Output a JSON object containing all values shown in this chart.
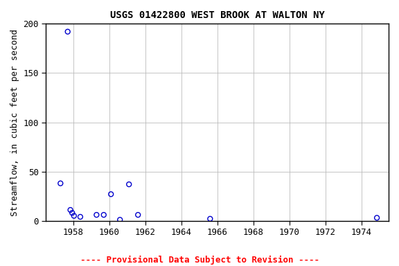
{
  "title": "USGS 01422800 WEST BROOK AT WALTON NY",
  "ylabel": "Streamflow, in cubic feet per second",
  "footnote": "---- Provisional Data Subject to Revision ----",
  "x_data": [
    1957.3,
    1957.7,
    1957.85,
    1957.95,
    1958.05,
    1958.4,
    1959.3,
    1959.7,
    1960.1,
    1960.6,
    1961.1,
    1961.6,
    1965.6,
    1974.85
  ],
  "y_data": [
    38,
    192,
    11,
    8,
    5,
    4,
    6,
    6,
    27,
    1,
    37,
    6,
    2,
    3
  ],
  "xlim": [
    1956.5,
    1975.5
  ],
  "ylim": [
    0,
    200
  ],
  "xticks": [
    1958,
    1960,
    1962,
    1964,
    1966,
    1968,
    1970,
    1972,
    1974
  ],
  "yticks": [
    0,
    50,
    100,
    150,
    200
  ],
  "marker_color": "#0000cc",
  "marker_facecolor": "none",
  "marker_size": 5,
  "footnote_color": "red",
  "background_color": "#ffffff",
  "plot_bg_color": "#ffffff",
  "grid_color": "#bbbbbb",
  "title_fontsize": 10,
  "label_fontsize": 9,
  "tick_fontsize": 9,
  "footnote_fontsize": 9
}
